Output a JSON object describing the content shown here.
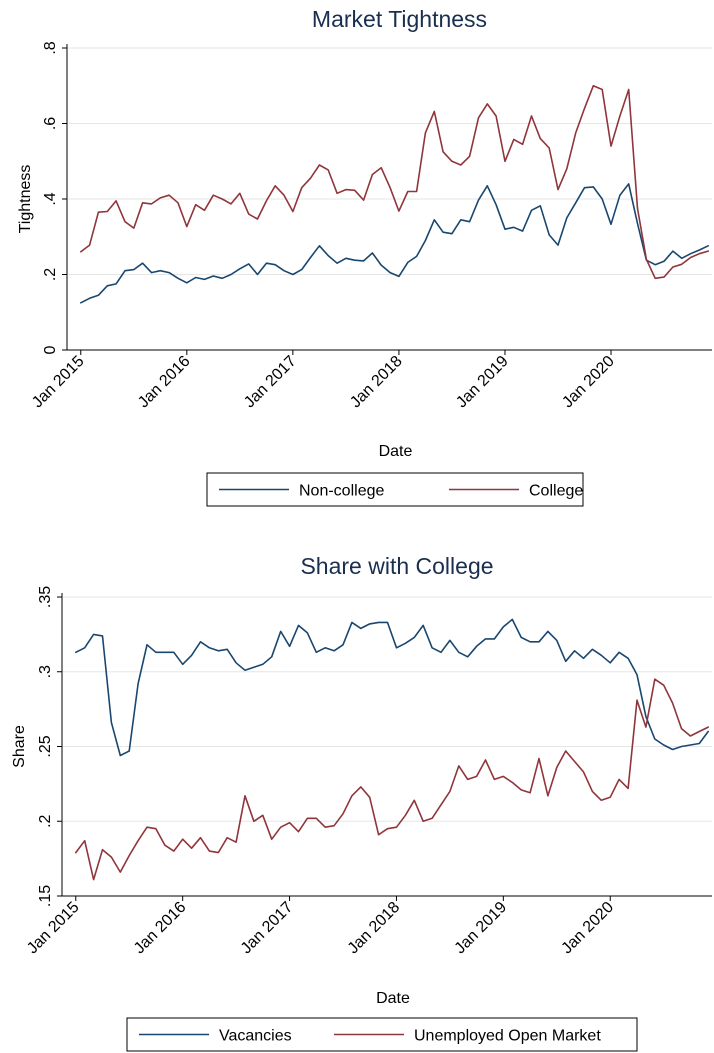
{
  "chart_data": [
    {
      "type": "line",
      "title": "Market Tightness",
      "xlabel": "Date",
      "ylabel": "Tightness",
      "ylim": [
        0,
        0.8
      ],
      "yticks": [
        0,
        0.2,
        0.4,
        0.6,
        0.8
      ],
      "ytick_labels": [
        "0",
        ".2",
        ".4",
        ".6",
        ".8"
      ],
      "xlim": [
        "2015-01",
        "2020-12"
      ],
      "xticks": [
        "2015-01",
        "2016-01",
        "2017-01",
        "2018-01",
        "2019-01",
        "2020-01"
      ],
      "xtick_labels": [
        "Jan 2015",
        "Jan 2016",
        "Jan 2017",
        "Jan 2018",
        "Jan 2019",
        "Jan 2020"
      ],
      "grid": "horizontal",
      "legend_position": "bottom",
      "series": [
        {
          "name": "Non-college",
          "color": "#1a476f",
          "x": [
            "2015-01",
            "2015-02",
            "2015-03",
            "2015-04",
            "2015-05",
            "2015-06",
            "2015-07",
            "2015-08",
            "2015-09",
            "2015-10",
            "2015-11",
            "2015-12",
            "2016-01",
            "2016-02",
            "2016-03",
            "2016-04",
            "2016-05",
            "2016-06",
            "2016-07",
            "2016-08",
            "2016-09",
            "2016-10",
            "2016-11",
            "2016-12",
            "2017-01",
            "2017-02",
            "2017-03",
            "2017-04",
            "2017-05",
            "2017-06",
            "2017-07",
            "2017-08",
            "2017-09",
            "2017-10",
            "2017-11",
            "2017-12",
            "2018-01",
            "2018-02",
            "2018-03",
            "2018-04",
            "2018-05",
            "2018-06",
            "2018-07",
            "2018-08",
            "2018-09",
            "2018-10",
            "2018-11",
            "2018-12",
            "2019-01",
            "2019-02",
            "2019-03",
            "2019-04",
            "2019-05",
            "2019-06",
            "2019-07",
            "2019-08",
            "2019-09",
            "2019-10",
            "2019-11",
            "2019-12",
            "2020-01",
            "2020-02",
            "2020-03",
            "2020-04",
            "2020-05",
            "2020-06",
            "2020-07",
            "2020-08",
            "2020-09",
            "2020-10",
            "2020-11",
            "2020-12"
          ],
          "values": [
            0.125,
            0.137,
            0.145,
            0.17,
            0.175,
            0.21,
            0.213,
            0.23,
            0.205,
            0.21,
            0.205,
            0.19,
            0.178,
            0.192,
            0.187,
            0.196,
            0.19,
            0.2,
            0.215,
            0.228,
            0.2,
            0.23,
            0.226,
            0.21,
            0.2,
            0.213,
            0.245,
            0.276,
            0.25,
            0.23,
            0.243,
            0.238,
            0.236,
            0.257,
            0.225,
            0.205,
            0.195,
            0.232,
            0.248,
            0.29,
            0.345,
            0.312,
            0.308,
            0.345,
            0.34,
            0.397,
            0.435,
            0.385,
            0.32,
            0.325,
            0.315,
            0.37,
            0.382,
            0.305,
            0.278,
            0.35,
            0.39,
            0.43,
            0.432,
            0.4,
            0.333,
            0.41,
            0.44,
            0.335,
            0.238,
            0.226,
            0.235,
            0.262,
            0.243,
            0.255,
            0.265,
            0.276
          ]
        },
        {
          "name": "College",
          "color": "#90353b",
          "x": [
            "2015-01",
            "2015-02",
            "2015-03",
            "2015-04",
            "2015-05",
            "2015-06",
            "2015-07",
            "2015-08",
            "2015-09",
            "2015-10",
            "2015-11",
            "2015-12",
            "2016-01",
            "2016-02",
            "2016-03",
            "2016-04",
            "2016-05",
            "2016-06",
            "2016-07",
            "2016-08",
            "2016-09",
            "2016-10",
            "2016-11",
            "2016-12",
            "2017-01",
            "2017-02",
            "2017-03",
            "2017-04",
            "2017-05",
            "2017-06",
            "2017-07",
            "2017-08",
            "2017-09",
            "2017-10",
            "2017-11",
            "2017-12",
            "2018-01",
            "2018-02",
            "2018-03",
            "2018-04",
            "2018-05",
            "2018-06",
            "2018-07",
            "2018-08",
            "2018-09",
            "2018-10",
            "2018-11",
            "2018-12",
            "2019-01",
            "2019-02",
            "2019-03",
            "2019-04",
            "2019-05",
            "2019-06",
            "2019-07",
            "2019-08",
            "2019-09",
            "2019-10",
            "2019-11",
            "2019-12",
            "2020-01",
            "2020-02",
            "2020-03",
            "2020-04",
            "2020-05",
            "2020-06",
            "2020-07",
            "2020-08",
            "2020-09",
            "2020-10",
            "2020-11",
            "2020-12"
          ],
          "values": [
            0.26,
            0.278,
            0.365,
            0.367,
            0.395,
            0.34,
            0.323,
            0.39,
            0.387,
            0.403,
            0.41,
            0.39,
            0.327,
            0.385,
            0.37,
            0.41,
            0.4,
            0.387,
            0.415,
            0.36,
            0.347,
            0.395,
            0.435,
            0.41,
            0.367,
            0.43,
            0.455,
            0.49,
            0.477,
            0.415,
            0.425,
            0.423,
            0.397,
            0.465,
            0.483,
            0.43,
            0.368,
            0.42,
            0.42,
            0.575,
            0.632,
            0.525,
            0.5,
            0.49,
            0.513,
            0.615,
            0.652,
            0.62,
            0.5,
            0.558,
            0.545,
            0.62,
            0.56,
            0.535,
            0.425,
            0.48,
            0.575,
            0.64,
            0.7,
            0.69,
            0.54,
            0.62,
            0.69,
            0.375,
            0.24,
            0.19,
            0.193,
            0.22,
            0.227,
            0.245,
            0.255,
            0.262
          ]
        }
      ]
    },
    {
      "type": "line",
      "title": "Share with College",
      "xlabel": "Date",
      "ylabel": "Share",
      "ylim": [
        0.15,
        0.35
      ],
      "yticks": [
        0.15,
        0.2,
        0.25,
        0.3,
        0.35
      ],
      "ytick_labels": [
        ".15",
        ".2",
        ".25",
        ".3",
        ".35"
      ],
      "xlim": [
        "2015-01",
        "2020-12"
      ],
      "xticks": [
        "2015-01",
        "2016-01",
        "2017-01",
        "2018-01",
        "2019-01",
        "2020-01"
      ],
      "xtick_labels": [
        "Jan 2015",
        "Jan 2016",
        "Jan 2017",
        "Jan 2018",
        "Jan 2019",
        "Jan 2020"
      ],
      "grid": "horizontal",
      "legend_position": "bottom",
      "series": [
        {
          "name": "Vacancies",
          "color": "#1a476f",
          "x": [
            "2015-01",
            "2015-02",
            "2015-03",
            "2015-04",
            "2015-05",
            "2015-06",
            "2015-07",
            "2015-08",
            "2015-09",
            "2015-10",
            "2015-11",
            "2015-12",
            "2016-01",
            "2016-02",
            "2016-03",
            "2016-04",
            "2016-05",
            "2016-06",
            "2016-07",
            "2016-08",
            "2016-09",
            "2016-10",
            "2016-11",
            "2016-12",
            "2017-01",
            "2017-02",
            "2017-03",
            "2017-04",
            "2017-05",
            "2017-06",
            "2017-07",
            "2017-08",
            "2017-09",
            "2017-10",
            "2017-11",
            "2017-12",
            "2018-01",
            "2018-02",
            "2018-03",
            "2018-04",
            "2018-05",
            "2018-06",
            "2018-07",
            "2018-08",
            "2018-09",
            "2018-10",
            "2018-11",
            "2018-12",
            "2019-01",
            "2019-02",
            "2019-03",
            "2019-04",
            "2019-05",
            "2019-06",
            "2019-07",
            "2019-08",
            "2019-09",
            "2019-10",
            "2019-11",
            "2019-12",
            "2020-01",
            "2020-02",
            "2020-03",
            "2020-04",
            "2020-05",
            "2020-06",
            "2020-07",
            "2020-08",
            "2020-09",
            "2020-10",
            "2020-11",
            "2020-12"
          ],
          "values": [
            0.313,
            0.316,
            0.325,
            0.324,
            0.266,
            0.244,
            0.247,
            0.292,
            0.318,
            0.313,
            0.313,
            0.313,
            0.305,
            0.311,
            0.32,
            0.316,
            0.314,
            0.315,
            0.306,
            0.301,
            0.303,
            0.305,
            0.31,
            0.327,
            0.317,
            0.331,
            0.326,
            0.313,
            0.316,
            0.314,
            0.318,
            0.333,
            0.329,
            0.332,
            0.333,
            0.333,
            0.316,
            0.319,
            0.323,
            0.331,
            0.316,
            0.313,
            0.321,
            0.313,
            0.31,
            0.317,
            0.322,
            0.322,
            0.33,
            0.335,
            0.323,
            0.32,
            0.32,
            0.327,
            0.321,
            0.307,
            0.314,
            0.309,
            0.315,
            0.311,
            0.306,
            0.313,
            0.309,
            0.298,
            0.27,
            0.255,
            0.251,
            0.248,
            0.25,
            0.251,
            0.252,
            0.26
          ]
        },
        {
          "name": "Unemployed Open Market",
          "color": "#90353b",
          "x": [
            "2015-01",
            "2015-02",
            "2015-03",
            "2015-04",
            "2015-05",
            "2015-06",
            "2015-07",
            "2015-08",
            "2015-09",
            "2015-10",
            "2015-11",
            "2015-12",
            "2016-01",
            "2016-02",
            "2016-03",
            "2016-04",
            "2016-05",
            "2016-06",
            "2016-07",
            "2016-08",
            "2016-09",
            "2016-10",
            "2016-11",
            "2016-12",
            "2017-01",
            "2017-02",
            "2017-03",
            "2017-04",
            "2017-05",
            "2017-06",
            "2017-07",
            "2017-08",
            "2017-09",
            "2017-10",
            "2017-11",
            "2017-12",
            "2018-01",
            "2018-02",
            "2018-03",
            "2018-04",
            "2018-05",
            "2018-06",
            "2018-07",
            "2018-08",
            "2018-09",
            "2018-10",
            "2018-11",
            "2018-12",
            "2019-01",
            "2019-02",
            "2019-03",
            "2019-04",
            "2019-05",
            "2019-06",
            "2019-07",
            "2019-08",
            "2019-09",
            "2019-10",
            "2019-11",
            "2019-12",
            "2020-01",
            "2020-02",
            "2020-03",
            "2020-04",
            "2020-05",
            "2020-06",
            "2020-07",
            "2020-08",
            "2020-09",
            "2020-10",
            "2020-11",
            "2020-12"
          ],
          "values": [
            0.179,
            0.187,
            0.161,
            0.181,
            0.176,
            0.166,
            0.177,
            0.187,
            0.196,
            0.195,
            0.184,
            0.18,
            0.188,
            0.182,
            0.189,
            0.18,
            0.179,
            0.189,
            0.186,
            0.217,
            0.2,
            0.204,
            0.188,
            0.196,
            0.199,
            0.193,
            0.202,
            0.202,
            0.196,
            0.197,
            0.205,
            0.217,
            0.223,
            0.216,
            0.191,
            0.195,
            0.196,
            0.204,
            0.214,
            0.2,
            0.202,
            0.211,
            0.22,
            0.237,
            0.228,
            0.23,
            0.241,
            0.228,
            0.23,
            0.226,
            0.221,
            0.219,
            0.242,
            0.217,
            0.236,
            0.247,
            0.24,
            0.233,
            0.22,
            0.214,
            0.216,
            0.228,
            0.222,
            0.281,
            0.263,
            0.295,
            0.291,
            0.279,
            0.262,
            0.257,
            0.26,
            0.263
          ]
        }
      ]
    }
  ]
}
